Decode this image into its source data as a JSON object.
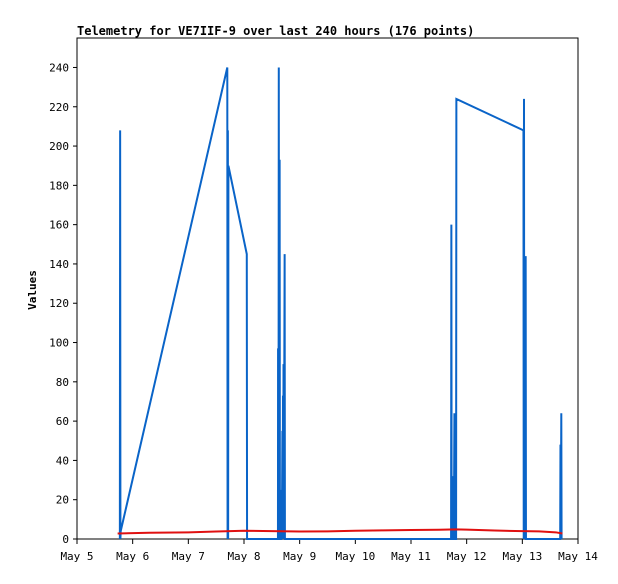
{
  "chart_data": {
    "type": "line",
    "title": "Telemetry for VE7IIF-9 over last 240 hours (176 points)",
    "xlabel": "",
    "ylabel": "Values",
    "x_unit": "day",
    "xlim": [
      5,
      14
    ],
    "ylim": [
      0,
      255
    ],
    "x_ticks": [
      {
        "value": 5,
        "label": "May 5"
      },
      {
        "value": 6,
        "label": "May 6"
      },
      {
        "value": 7,
        "label": "May 7"
      },
      {
        "value": 8,
        "label": "May 8"
      },
      {
        "value": 9,
        "label": "May 9"
      },
      {
        "value": 10,
        "label": "May 10"
      },
      {
        "value": 11,
        "label": "May 11"
      },
      {
        "value": 12,
        "label": "May 12"
      },
      {
        "value": 13,
        "label": "May 13"
      },
      {
        "value": 14,
        "label": "May 14"
      }
    ],
    "y_ticks": [
      0,
      20,
      40,
      60,
      80,
      100,
      120,
      140,
      160,
      180,
      200,
      220,
      240
    ],
    "grid": false,
    "legend": "none",
    "series": [
      {
        "color": "#0a64c8",
        "points": [
          [
            5.77,
            0
          ],
          [
            5.775,
            208
          ],
          [
            5.78,
            0
          ],
          [
            5.785,
            4
          ],
          [
            7.7,
            240
          ],
          [
            7.705,
            0
          ],
          [
            7.71,
            208
          ],
          [
            7.715,
            0
          ],
          [
            7.72,
            190
          ],
          [
            8.05,
            145
          ],
          [
            8.055,
            0
          ],
          [
            8.61,
            0
          ],
          [
            8.612,
            97
          ],
          [
            8.62,
            0
          ],
          [
            8.625,
            240
          ],
          [
            8.63,
            0
          ],
          [
            8.64,
            193
          ],
          [
            8.645,
            0
          ],
          [
            8.67,
            0
          ],
          [
            8.675,
            25
          ],
          [
            8.68,
            0
          ],
          [
            8.69,
            55
          ],
          [
            8.695,
            0
          ],
          [
            8.7,
            73
          ],
          [
            8.705,
            0
          ],
          [
            8.71,
            89
          ],
          [
            8.715,
            0
          ],
          [
            8.73,
            145
          ],
          [
            8.735,
            0
          ],
          [
            11.72,
            0
          ],
          [
            11.725,
            160
          ],
          [
            11.73,
            0
          ],
          [
            11.76,
            0
          ],
          [
            11.765,
            32
          ],
          [
            11.77,
            0
          ],
          [
            11.78,
            64
          ],
          [
            11.785,
            0
          ],
          [
            11.79,
            16
          ],
          [
            11.795,
            0
          ],
          [
            11.81,
            0
          ],
          [
            11.815,
            224
          ],
          [
            13.02,
            208
          ],
          [
            13.025,
            0
          ],
          [
            13.03,
            224
          ],
          [
            13.035,
            0
          ],
          [
            13.04,
            128
          ],
          [
            13.045,
            0
          ],
          [
            13.06,
            144
          ],
          [
            13.065,
            0
          ],
          [
            13.68,
            0
          ],
          [
            13.685,
            48
          ],
          [
            13.69,
            0
          ],
          [
            13.7,
            64
          ],
          [
            13.705,
            0
          ]
        ]
      },
      {
        "color": "#e01010",
        "points": [
          [
            5.73,
            2.8
          ],
          [
            6.3,
            3.2
          ],
          [
            7.0,
            3.4
          ],
          [
            7.5,
            3.8
          ],
          [
            8.0,
            4.2
          ],
          [
            8.5,
            4.0
          ],
          [
            9.0,
            3.8
          ],
          [
            9.5,
            3.9
          ],
          [
            10.0,
            4.2
          ],
          [
            10.5,
            4.4
          ],
          [
            11.0,
            4.6
          ],
          [
            11.5,
            4.7
          ],
          [
            11.8,
            4.9
          ],
          [
            12.0,
            4.8
          ],
          [
            12.5,
            4.3
          ],
          [
            13.0,
            4.0
          ],
          [
            13.3,
            3.9
          ],
          [
            13.6,
            3.4
          ],
          [
            13.72,
            2.8
          ]
        ]
      }
    ]
  }
}
